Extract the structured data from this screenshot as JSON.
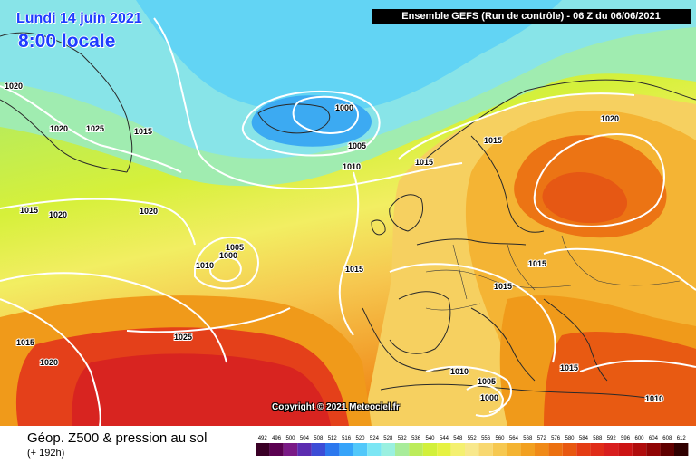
{
  "header": {
    "date": "Lundi 14 juin 2021",
    "local_time": "8:00 locale",
    "run_info": "Ensemble GEFS  (Run de contrôle)  -  06 Z du 06/06/2021"
  },
  "copyright": "Copyright © 2021 Meteociel.fr",
  "legend": {
    "title": "Géop. Z500 & pression au sol",
    "subtitle": "(+ 192h)",
    "scale_values": [
      "492",
      "496",
      "500",
      "504",
      "508",
      "512",
      "516",
      "520",
      "524",
      "528",
      "532",
      "536",
      "540",
      "544",
      "548",
      "552",
      "556",
      "560",
      "564",
      "568",
      "572",
      "576",
      "580",
      "584",
      "588",
      "592",
      "596",
      "600",
      "604",
      "608",
      "612"
    ],
    "scale_colors": [
      "#3a0026",
      "#5a0050",
      "#7a1a86",
      "#5c2cb0",
      "#3c4cd6",
      "#2c78ee",
      "#36a4fa",
      "#52c8fa",
      "#7ce6f4",
      "#9af0e0",
      "#a8ec9a",
      "#bcec5a",
      "#d2f03a",
      "#e6f242",
      "#f4f070",
      "#f8e88c",
      "#f8d870",
      "#f6c850",
      "#f4b432",
      "#f2a020",
      "#f08a18",
      "#ec7010",
      "#e85810",
      "#e43c14",
      "#e02c18",
      "#d81e1e",
      "#cc1414",
      "#b00c0c",
      "#900404",
      "#600000",
      "#300000"
    ]
  },
  "isobars": [
    {
      "label": "1020",
      "value": 1020
    },
    {
      "label": "1020",
      "value": 1020
    },
    {
      "label": "1025",
      "value": 1025
    },
    {
      "label": "1015",
      "value": 1015
    },
    {
      "label": "1000",
      "value": 1000
    },
    {
      "label": "1005",
      "value": 1005
    },
    {
      "label": "1010",
      "value": 1010
    },
    {
      "label": "1015",
      "value": 1015
    },
    {
      "label": "1015",
      "value": 1015
    },
    {
      "label": "1020",
      "value": 1020
    },
    {
      "label": "1015",
      "value": 1015
    },
    {
      "label": "1020",
      "value": 1020
    },
    {
      "label": "1020",
      "value": 1020
    },
    {
      "label": "1005",
      "value": 1005
    },
    {
      "label": "1000",
      "value": 1000
    },
    {
      "label": "1010",
      "value": 1010
    },
    {
      "label": "1015",
      "value": 1015
    },
    {
      "label": "1015",
      "value": 1015
    },
    {
      "label": "1015",
      "value": 1015
    },
    {
      "label": "1025",
      "value": 1025
    },
    {
      "label": "1015",
      "value": 1015
    },
    {
      "label": "1020",
      "value": 1020
    },
    {
      "label": "1010",
      "value": 1010
    },
    {
      "label": "1005",
      "value": 1005
    },
    {
      "label": "1000",
      "value": 1000
    },
    {
      "label": "1015",
      "value": 1015
    },
    {
      "label": "1010",
      "value": 1010
    }
  ]
}
